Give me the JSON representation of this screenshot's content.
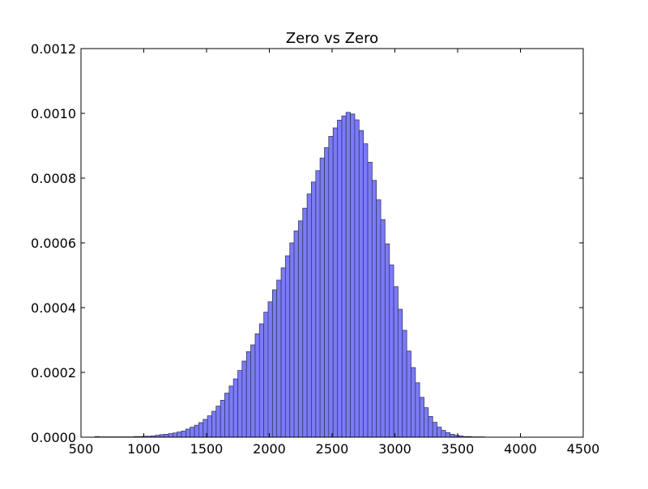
{
  "chart_data": {
    "type": "bar",
    "title": "Zero vs Zero",
    "xlabel": "",
    "ylabel": "",
    "xlim": [
      500,
      4500
    ],
    "ylim": [
      0,
      0.0012
    ],
    "xticks": [
      500,
      1000,
      1500,
      2000,
      2500,
      3000,
      3500,
      4000,
      4500
    ],
    "xtick_labels": [
      "500",
      "1000",
      "1500",
      "2000",
      "2500",
      "3000",
      "3500",
      "4000",
      "4500"
    ],
    "yticks": [
      0,
      0.0002,
      0.0004,
      0.0006,
      0.0008,
      0.001,
      0.0012
    ],
    "ytick_labels": [
      "0.0000",
      "0.0002",
      "0.0004",
      "0.0006",
      "0.0008",
      "0.0010",
      "0.0012"
    ],
    "grid": false,
    "bar_color": "#7b7bf7",
    "bar_edge_color": "#3a3a66",
    "bin_width": 34.5,
    "bins_x": [
      610,
      645,
      679,
      714,
      748,
      783,
      817,
      852,
      886,
      921,
      955,
      990,
      1024,
      1059,
      1093,
      1128,
      1162,
      1197,
      1231,
      1266,
      1300,
      1335,
      1369,
      1404,
      1438,
      1473,
      1507,
      1542,
      1576,
      1611,
      1645,
      1680,
      1714,
      1749,
      1783,
      1818,
      1852,
      1887,
      1921,
      1956,
      1990,
      2025,
      2059,
      2094,
      2128,
      2163,
      2197,
      2232,
      2266,
      2301,
      2335,
      2370,
      2404,
      2439,
      2473,
      2508,
      2542,
      2577,
      2611,
      2646,
      2680,
      2715,
      2749,
      2784,
      2818,
      2853,
      2887,
      2922,
      2956,
      2991,
      3025,
      3060,
      3094,
      3129,
      3163,
      3198,
      3232,
      3267,
      3301,
      3336,
      3370,
      3405,
      3439,
      3474,
      3508,
      3543,
      3577,
      3612,
      3646,
      3681
    ],
    "values": [
      2e-06,
      1e-06,
      1e-06,
      1e-06,
      1e-06,
      1e-06,
      1e-06,
      1e-06,
      1e-06,
      2e-06,
      2e-06,
      3e-06,
      3e-06,
      4e-06,
      6e-06,
      8e-06,
      9e-06,
      1.1e-05,
      1.3e-05,
      1.6e-05,
      1.9e-05,
      2.5e-05,
      3.1e-05,
      3.7e-05,
      4.5e-05,
      5.5e-05,
      6.6e-05,
      8e-05,
      9.6e-05,
      0.000114,
      0.000136,
      0.000158,
      0.00018,
      0.000206,
      0.000235,
      0.000264,
      0.000285,
      0.000319,
      0.00035,
      0.000386,
      0.000418,
      0.000455,
      0.000485,
      0.000523,
      0.00056,
      0.0006,
      0.000637,
      0.000668,
      0.000707,
      0.000751,
      0.000788,
      0.000823,
      0.000862,
      0.000894,
      0.000929,
      0.000955,
      0.000979,
      0.000992,
      0.001003,
      0.000998,
      0.00098,
      0.000947,
      0.000906,
      0.000849,
      0.000793,
      0.000733,
      0.000672,
      0.000597,
      0.000532,
      0.000465,
      0.000395,
      0.00033,
      0.000266,
      0.000215,
      0.000168,
      0.000123,
      9.1e-05,
      6.4e-05,
      4.6e-05,
      3.1e-05,
      2.1e-05,
      1.4e-05,
      9e-06,
      6e-06,
      4e-06,
      2e-06,
      2e-06,
      1e-06,
      1e-06,
      1e-06
    ]
  }
}
